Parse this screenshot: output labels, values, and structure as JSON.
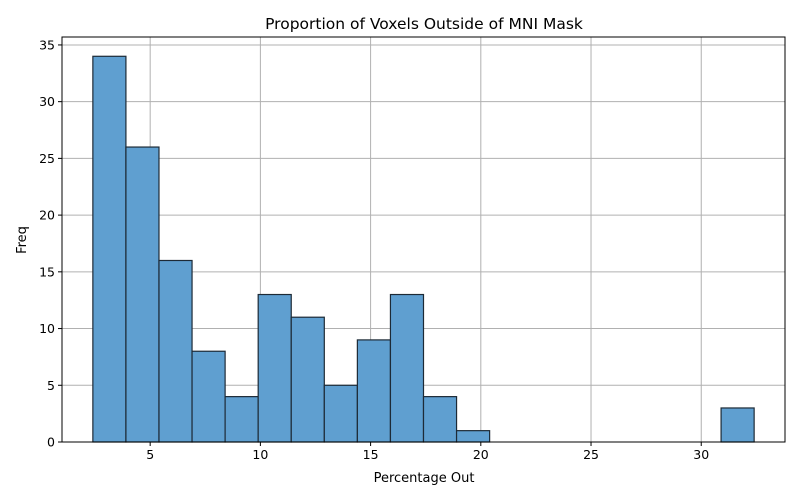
{
  "chart_data": {
    "type": "bar",
    "subtype": "histogram",
    "title": "Proportion of Voxels Outside of MNI Mask",
    "xlabel": "Percentage Out",
    "ylabel": "Freq",
    "xlim": [
      1.0,
      33.8
    ],
    "ylim": [
      0,
      35.7
    ],
    "x_ticks": [
      5,
      10,
      15,
      20,
      25,
      30
    ],
    "y_ticks": [
      0,
      5,
      10,
      15,
      20,
      25,
      30,
      35
    ],
    "grid": true,
    "bar_color": "#5f9fd0",
    "edge_color": "#1d2a36",
    "bins": [
      {
        "x0": 2.4,
        "x1": 3.9,
        "value": 34
      },
      {
        "x0": 3.9,
        "x1": 5.4,
        "value": 26
      },
      {
        "x0": 5.4,
        "x1": 6.9,
        "value": 16
      },
      {
        "x0": 6.9,
        "x1": 8.4,
        "value": 8
      },
      {
        "x0": 8.4,
        "x1": 9.9,
        "value": 4
      },
      {
        "x0": 9.9,
        "x1": 11.4,
        "value": 13
      },
      {
        "x0": 11.4,
        "x1": 12.9,
        "value": 11
      },
      {
        "x0": 12.9,
        "x1": 14.4,
        "value": 5
      },
      {
        "x0": 14.4,
        "x1": 15.9,
        "value": 9
      },
      {
        "x0": 15.9,
        "x1": 17.4,
        "value": 13
      },
      {
        "x0": 17.4,
        "x1": 18.9,
        "value": 4
      },
      {
        "x0": 18.9,
        "x1": 20.4,
        "value": 1
      },
      {
        "x0": 20.4,
        "x1": 21.9,
        "value": 0
      },
      {
        "x0": 21.9,
        "x1": 23.4,
        "value": 0
      },
      {
        "x0": 23.4,
        "x1": 24.9,
        "value": 0
      },
      {
        "x0": 24.9,
        "x1": 26.4,
        "value": 0
      },
      {
        "x0": 26.4,
        "x1": 27.9,
        "value": 0
      },
      {
        "x0": 27.9,
        "x1": 29.4,
        "value": 0
      },
      {
        "x0": 29.4,
        "x1": 30.9,
        "value": 0
      },
      {
        "x0": 30.9,
        "x1": 32.4,
        "value": 3
      }
    ]
  }
}
